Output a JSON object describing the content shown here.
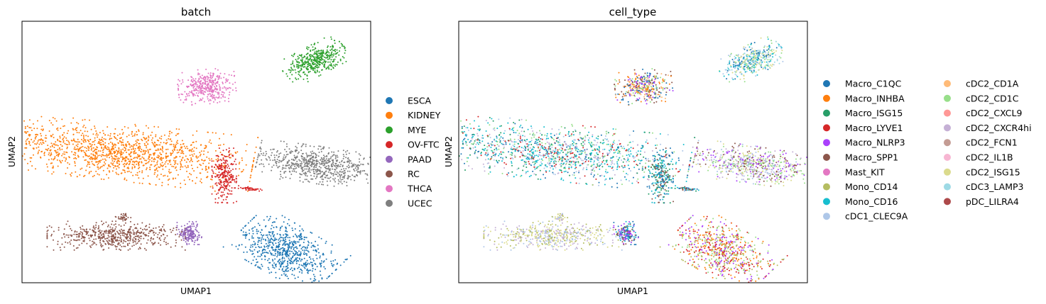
{
  "chart_data": [
    {
      "type": "scatter",
      "title": "batch",
      "xlabel": "UMAP1",
      "ylabel": "UMAP2",
      "xticks": false,
      "yticks": false,
      "grid": false,
      "legend_position": "right",
      "legend": [
        {
          "label": "ESCA",
          "color": "#1f77b4"
        },
        {
          "label": "KIDNEY",
          "color": "#ff7f0e"
        },
        {
          "label": "MYE",
          "color": "#2ca02c"
        },
        {
          "label": "OV-FTC",
          "color": "#d62728"
        },
        {
          "label": "PAAD",
          "color": "#9467bd"
        },
        {
          "label": "RC",
          "color": "#8c564b"
        },
        {
          "label": "THCA",
          "color": "#e377c2"
        },
        {
          "label": "UCEC",
          "color": "#7f7f7f"
        }
      ],
      "clusters": [
        {
          "category": "KIDNEY",
          "center": [
            2.8,
            5.0
          ],
          "spread": [
            3.5,
            1.0
          ],
          "rotation": -8,
          "n": 1400
        },
        {
          "category": "THCA",
          "center": [
            5.3,
            7.5
          ],
          "spread": [
            0.75,
            0.6
          ],
          "rotation": 5,
          "n": 380
        },
        {
          "category": "MYE",
          "center": [
            8.4,
            8.5
          ],
          "spread": [
            0.9,
            0.5
          ],
          "rotation": 35,
          "n": 420
        },
        {
          "category": "OV-FTC",
          "center": [
            5.8,
            4.1
          ],
          "spread": [
            0.32,
            0.95
          ],
          "rotation": 0,
          "n": 260
        },
        {
          "category": "OV-FTC",
          "center": [
            6.5,
            3.6
          ],
          "spread": [
            0.35,
            0.06
          ],
          "rotation": -10,
          "n": 40
        },
        {
          "category": "UCEC",
          "center": [
            8.5,
            4.5
          ],
          "spread": [
            1.6,
            0.65
          ],
          "rotation": -10,
          "n": 700
        },
        {
          "category": "RC",
          "center": [
            2.7,
            1.8
          ],
          "spread": [
            1.8,
            0.5
          ],
          "rotation": 0,
          "n": 550
        },
        {
          "category": "RC",
          "center": [
            2.9,
            2.5
          ],
          "spread": [
            0.2,
            0.13
          ],
          "rotation": 0,
          "n": 40
        },
        {
          "category": "PAAD",
          "center": [
            4.8,
            1.9
          ],
          "spread": [
            0.32,
            0.4
          ],
          "rotation": 0,
          "n": 180
        },
        {
          "category": "ESCA",
          "center": [
            7.6,
            1.2
          ],
          "spread": [
            1.4,
            0.9
          ],
          "rotation": -38,
          "n": 700
        }
      ]
    },
    {
      "type": "scatter",
      "title": "cell_type",
      "xlabel": "UMAP1",
      "ylabel": "UMAP2",
      "xticks": false,
      "yticks": false,
      "grid": false,
      "legend_position": "right",
      "legend": [
        {
          "label": "Macro_C1QC",
          "color": "#1f77b4"
        },
        {
          "label": "Macro_INHBA",
          "color": "#ff7f0e"
        },
        {
          "label": "Macro_ISG15",
          "color": "#279e68"
        },
        {
          "label": "Macro_LYVE1",
          "color": "#d62728"
        },
        {
          "label": "Macro_NLRP3",
          "color": "#aa40fc"
        },
        {
          "label": "Macro_SPP1",
          "color": "#8c564b"
        },
        {
          "label": "Mast_KIT",
          "color": "#e377c2"
        },
        {
          "label": "Mono_CD14",
          "color": "#b5bd61"
        },
        {
          "label": "Mono_CD16",
          "color": "#17becf"
        },
        {
          "label": "cDC1_CLEC9A",
          "color": "#aec7e8"
        },
        {
          "label": "cDC2_CD1A",
          "color": "#ffbb78"
        },
        {
          "label": "cDC2_CD1C",
          "color": "#98df8a"
        },
        {
          "label": "cDC2_CXCL9",
          "color": "#ff9896"
        },
        {
          "label": "cDC2_CXCR4hi",
          "color": "#c5b0d5"
        },
        {
          "label": "cDC2_FCN1",
          "color": "#c49c94"
        },
        {
          "label": "cDC2_IL1B",
          "color": "#f7b6d2"
        },
        {
          "label": "cDC2_ISG15",
          "color": "#dbdb8d"
        },
        {
          "label": "cDC3_LAMP3",
          "color": "#9edae5"
        },
        {
          "label": "pDC_LILRA4",
          "color": "#ad494a"
        }
      ],
      "clusters": [
        {
          "region": "KIDNEY",
          "mix": [
            "Mono_CD16",
            "Mono_CD16",
            "Macro_ISG15",
            "cDC1_CLEC9A",
            "cDC2_CD1C",
            "Macro_C1QC",
            "cDC2_CXCR4hi",
            "Macro_LYVE1"
          ]
        },
        {
          "region": "THCA",
          "mix": [
            "Macro_INHBA",
            "Macro_C1QC",
            "Macro_NLRP3",
            "cDC2_CD1C",
            "Macro_SPP1",
            "cDC2_CD1A"
          ]
        },
        {
          "region": "MYE",
          "mix": [
            "Mono_CD16",
            "cDC3_LAMP3",
            "cDC2_CD1C",
            "Macro_C1QC",
            "cDC2_ISG15",
            "cDC1_CLEC9A"
          ]
        },
        {
          "region": "OV-FTC",
          "mix": [
            "Macro_C1QC",
            "Macro_SPP1",
            "Mono_CD16",
            "Macro_ISG15"
          ]
        },
        {
          "region": "UCEC",
          "mix": [
            "cDC2_CD1C",
            "cDC2_ISG15",
            "Macro_SPP1",
            "Macro_NLRP3",
            "cDC2_CXCR4hi",
            "cDC1_CLEC9A"
          ]
        },
        {
          "region": "RC",
          "mix": [
            "cDC1_CLEC9A",
            "cDC2_ISG15",
            "cDC2_CXCR4hi",
            "Mono_CD14"
          ]
        },
        {
          "region": "PAAD",
          "mix": [
            "Macro_C1QC",
            "Macro_SPP1",
            "Macro_NLRP3",
            "Mono_CD16"
          ]
        },
        {
          "region": "ESCA",
          "mix": [
            "Macro_NLRP3",
            "Macro_LYVE1",
            "cDC2_CD1C",
            "Mono_CD14",
            "Macro_INHBA"
          ]
        }
      ]
    }
  ]
}
